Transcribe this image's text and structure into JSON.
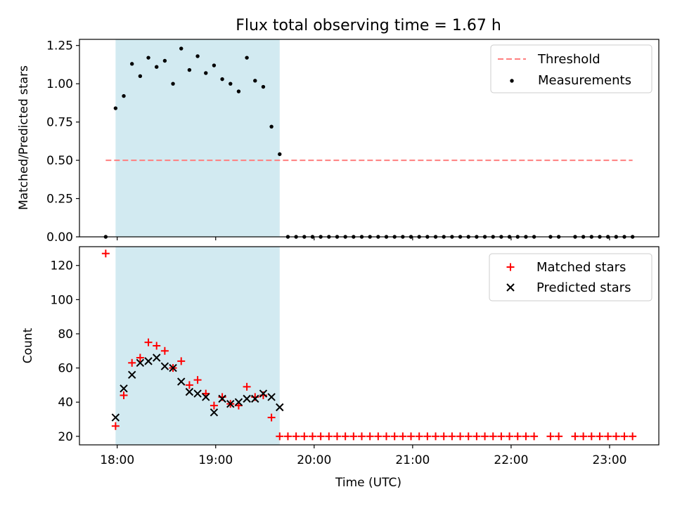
{
  "chart_data": {
    "title": "Flux total observing time = 1.67 h",
    "shaded_interval": {
      "start": "17:59",
      "end": "19:39",
      "color": "#add8e6"
    },
    "x_axis": {
      "label": "Time (UTC)",
      "range": [
        "17:37",
        "23:30"
      ],
      "ticks": [
        "18:00",
        "19:00",
        "20:00",
        "21:00",
        "22:00",
        "23:00"
      ]
    },
    "panels": [
      {
        "type": "scatter",
        "ylabel": "Matched/Predicted stars",
        "ylim": [
          0,
          1.29
        ],
        "yticks": [
          "0.00",
          "0.25",
          "0.50",
          "0.75",
          "1.00",
          "1.25"
        ],
        "legend_position": "top-right",
        "threshold": {
          "name": "Threshold",
          "value": 0.5,
          "x_range": [
            "17:53",
            "23:14"
          ],
          "color": "#ff7f7f"
        },
        "series": [
          {
            "name": "Measurements",
            "marker": "dot",
            "color": "#000000",
            "points": [
              [
                "17:53",
                0.0
              ],
              [
                "17:59",
                0.84
              ],
              [
                "18:04",
                0.92
              ],
              [
                "18:09",
                1.13
              ],
              [
                "18:14",
                1.05
              ],
              [
                "18:19",
                1.17
              ],
              [
                "18:24",
                1.11
              ],
              [
                "18:29",
                1.15
              ],
              [
                "18:34",
                1.0
              ],
              [
                "18:39",
                1.23
              ],
              [
                "18:44",
                1.09
              ],
              [
                "18:49",
                1.18
              ],
              [
                "18:54",
                1.07
              ],
              [
                "18:59",
                1.12
              ],
              [
                "19:04",
                1.03
              ],
              [
                "19:09",
                1.0
              ],
              [
                "19:14",
                0.95
              ],
              [
                "19:19",
                1.17
              ],
              [
                "19:24",
                1.02
              ],
              [
                "19:29",
                0.98
              ],
              [
                "19:34",
                0.72
              ],
              [
                "19:39",
                0.54
              ],
              [
                "19:44",
                0.0
              ],
              [
                "19:49",
                0.0
              ],
              [
                "19:54",
                0.0
              ],
              [
                "19:59",
                0.0
              ],
              [
                "20:04",
                0.0
              ],
              [
                "20:09",
                0.0
              ],
              [
                "20:14",
                0.0
              ],
              [
                "20:19",
                0.0
              ],
              [
                "20:24",
                0.0
              ],
              [
                "20:29",
                0.0
              ],
              [
                "20:34",
                0.0
              ],
              [
                "20:39",
                0.0
              ],
              [
                "20:44",
                0.0
              ],
              [
                "20:49",
                0.0
              ],
              [
                "20:54",
                0.0
              ],
              [
                "20:59",
                0.0
              ],
              [
                "21:04",
                0.0
              ],
              [
                "21:09",
                0.0
              ],
              [
                "21:14",
                0.0
              ],
              [
                "21:19",
                0.0
              ],
              [
                "21:24",
                0.0
              ],
              [
                "21:29",
                0.0
              ],
              [
                "21:34",
                0.0
              ],
              [
                "21:39",
                0.0
              ],
              [
                "21:44",
                0.0
              ],
              [
                "21:49",
                0.0
              ],
              [
                "21:54",
                0.0
              ],
              [
                "21:59",
                0.0
              ],
              [
                "22:04",
                0.0
              ],
              [
                "22:09",
                0.0
              ],
              [
                "22:14",
                0.0
              ],
              [
                "22:24",
                0.0
              ],
              [
                "22:29",
                0.0
              ],
              [
                "22:39",
                0.0
              ],
              [
                "22:44",
                0.0
              ],
              [
                "22:49",
                0.0
              ],
              [
                "22:54",
                0.0
              ],
              [
                "22:59",
                0.0
              ],
              [
                "23:04",
                0.0
              ],
              [
                "23:09",
                0.0
              ],
              [
                "23:14",
                0.0
              ]
            ]
          }
        ]
      },
      {
        "type": "scatter",
        "ylabel": "Count",
        "ylim": [
          15,
          131
        ],
        "yticks": [
          "20",
          "40",
          "60",
          "80",
          "100",
          "120"
        ],
        "legend_position": "top-right",
        "series": [
          {
            "name": "Matched stars",
            "marker": "plus",
            "color": "#ff0000",
            "points": [
              [
                "17:53",
                127
              ],
              [
                "17:59",
                26
              ],
              [
                "18:04",
                44
              ],
              [
                "18:09",
                63
              ],
              [
                "18:14",
                66
              ],
              [
                "18:19",
                75
              ],
              [
                "18:24",
                73
              ],
              [
                "18:29",
                70
              ],
              [
                "18:34",
                60
              ],
              [
                "18:39",
                64
              ],
              [
                "18:44",
                50
              ],
              [
                "18:49",
                53
              ],
              [
                "18:54",
                45
              ],
              [
                "18:59",
                38
              ],
              [
                "19:04",
                43
              ],
              [
                "19:09",
                39
              ],
              [
                "19:14",
                38
              ],
              [
                "19:19",
                49
              ],
              [
                "19:24",
                43
              ],
              [
                "19:29",
                44
              ],
              [
                "19:34",
                31
              ],
              [
                "19:39",
                20
              ],
              [
                "19:44",
                20
              ],
              [
                "19:49",
                20
              ],
              [
                "19:54",
                20
              ],
              [
                "19:59",
                20
              ],
              [
                "20:04",
                20
              ],
              [
                "20:09",
                20
              ],
              [
                "20:14",
                20
              ],
              [
                "20:19",
                20
              ],
              [
                "20:24",
                20
              ],
              [
                "20:29",
                20
              ],
              [
                "20:34",
                20
              ],
              [
                "20:39",
                20
              ],
              [
                "20:44",
                20
              ],
              [
                "20:49",
                20
              ],
              [
                "20:54",
                20
              ],
              [
                "20:59",
                20
              ],
              [
                "21:04",
                20
              ],
              [
                "21:09",
                20
              ],
              [
                "21:14",
                20
              ],
              [
                "21:19",
                20
              ],
              [
                "21:24",
                20
              ],
              [
                "21:29",
                20
              ],
              [
                "21:34",
                20
              ],
              [
                "21:39",
                20
              ],
              [
                "21:44",
                20
              ],
              [
                "21:49",
                20
              ],
              [
                "21:54",
                20
              ],
              [
                "21:59",
                20
              ],
              [
                "22:04",
                20
              ],
              [
                "22:09",
                20
              ],
              [
                "22:14",
                20
              ],
              [
                "22:24",
                20
              ],
              [
                "22:29",
                20
              ],
              [
                "22:39",
                20
              ],
              [
                "22:44",
                20
              ],
              [
                "22:49",
                20
              ],
              [
                "22:54",
                20
              ],
              [
                "22:59",
                20
              ],
              [
                "23:04",
                20
              ],
              [
                "23:09",
                20
              ],
              [
                "23:14",
                20
              ]
            ]
          },
          {
            "name": "Predicted stars",
            "marker": "x",
            "color": "#000000",
            "points": [
              [
                "17:59",
                31
              ],
              [
                "18:04",
                48
              ],
              [
                "18:09",
                56
              ],
              [
                "18:14",
                63
              ],
              [
                "18:19",
                64
              ],
              [
                "18:24",
                66
              ],
              [
                "18:29",
                61
              ],
              [
                "18:34",
                60
              ],
              [
                "18:39",
                52
              ],
              [
                "18:44",
                46
              ],
              [
                "18:49",
                45
              ],
              [
                "18:54",
                43
              ],
              [
                "18:59",
                34
              ],
              [
                "19:04",
                42
              ],
              [
                "19:09",
                39
              ],
              [
                "19:14",
                40
              ],
              [
                "19:19",
                42
              ],
              [
                "19:24",
                42
              ],
              [
                "19:29",
                45
              ],
              [
                "19:34",
                43
              ],
              [
                "19:39",
                37
              ]
            ]
          }
        ]
      }
    ]
  }
}
